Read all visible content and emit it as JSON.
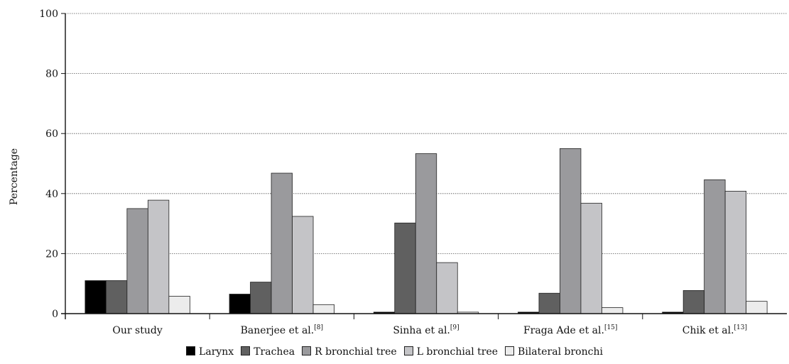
{
  "chart_data": {
    "type": "bar",
    "title": "",
    "xlabel": "",
    "ylabel": "Percentage",
    "ylim": [
      0,
      100
    ],
    "yticks": [
      "0",
      "20",
      "40",
      "60",
      "80",
      "100"
    ],
    "grid": true,
    "legend_position": "bottom",
    "categories": [
      {
        "name": "Our study",
        "ref": ""
      },
      {
        "name": "Banerjee et al.",
        "ref": "[8]"
      },
      {
        "name": "Sinha et al.",
        "ref": "[9]"
      },
      {
        "name": "Fraga Ade et al.",
        "ref": "[15]"
      },
      {
        "name": "Chik et al.",
        "ref": "[13]"
      }
    ],
    "series": [
      {
        "name": "Larynx",
        "color": "#000000",
        "values": [
          11,
          6.5,
          0.5,
          0.5,
          0.5
        ]
      },
      {
        "name": "Trachea",
        "color": "#606060",
        "values": [
          11,
          10.5,
          30.2,
          6.8,
          7.7
        ]
      },
      {
        "name": "R bronchial tree",
        "color": "#9a9a9d",
        "values": [
          35,
          46.8,
          53.3,
          55,
          44.6
        ]
      },
      {
        "name": "L bronchial tree",
        "color": "#c4c4c7",
        "values": [
          37.8,
          32.4,
          17,
          36.8,
          40.8
        ]
      },
      {
        "name": "Bilateral bronchi",
        "color": "#ececec",
        "values": [
          5.8,
          3,
          0.5,
          2,
          4.1
        ]
      }
    ]
  }
}
